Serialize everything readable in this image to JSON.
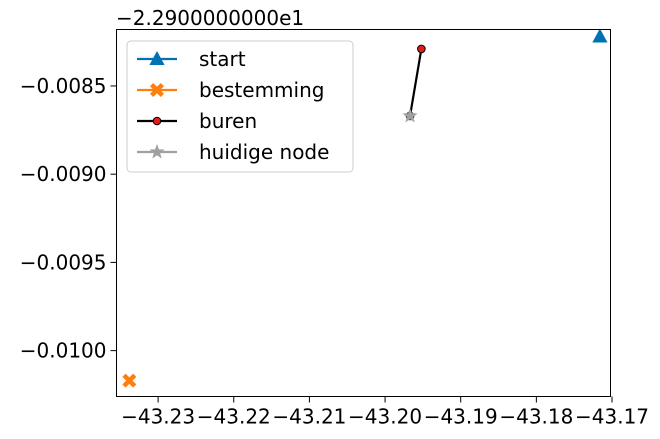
{
  "chart_data": {
    "type": "line",
    "title": "",
    "xlabel": "",
    "ylabel": "",
    "y_offset_label": "−2.2900000000e1",
    "xlim": [
      -43.2355,
      -43.1702
    ],
    "ylim": [
      -0.01026,
      -0.00818
    ],
    "x_ticks": [
      -43.23,
      -43.22,
      -43.21,
      -43.2,
      -43.19,
      -43.18,
      -43.17
    ],
    "x_tick_labels": [
      "−43.23",
      "−43.22",
      "−43.21",
      "−43.20",
      "−43.19",
      "−43.18",
      "−43.17"
    ],
    "y_ticks": [
      -0.0085,
      -0.009,
      -0.0095,
      -0.01
    ],
    "y_tick_labels": [
      "−0.0085",
      "−0.0090",
      "−0.0095",
      "−0.0100"
    ],
    "grid": false,
    "legend_position": "top-left",
    "series": [
      {
        "name": "start",
        "color": "#0072b2",
        "marker": "triangle",
        "points": [
          [
            -43.1716,
            -0.00822
          ]
        ]
      },
      {
        "name": "bestemming",
        "color": "#ff7f0e",
        "marker": "x",
        "points": [
          [
            -43.2338,
            -0.01017
          ]
        ]
      },
      {
        "name": "buren",
        "color": "#000000",
        "marker": "dot",
        "marker_color": "#e41a1c",
        "points": [
          [
            -43.1967,
            -0.00867
          ],
          [
            -43.1952,
            -0.00829
          ]
        ]
      },
      {
        "name": "huidige node",
        "color": "#a0a0a0",
        "marker": "star",
        "points": [
          [
            -43.1967,
            -0.00867
          ]
        ]
      }
    ]
  }
}
